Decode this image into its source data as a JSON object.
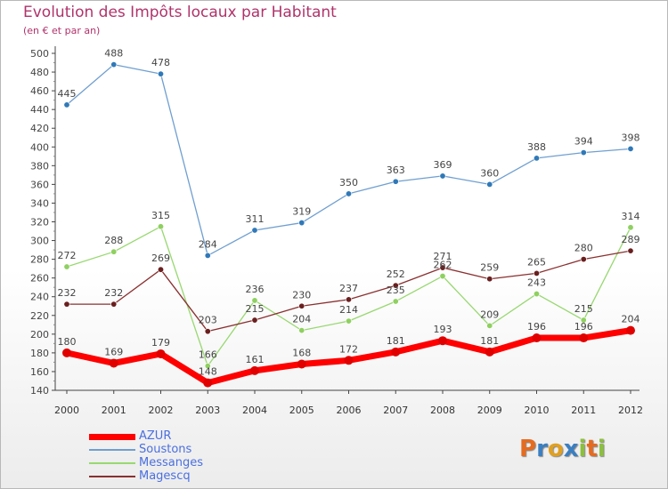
{
  "header": {
    "title": "Evolution des Impôts locaux par Habitant",
    "subtitle": "(en € et par an)"
  },
  "colors": {
    "title": "#b0336b",
    "axis": "#555555",
    "grid": "#e3e3e3"
  },
  "logo": {
    "letters": [
      "P",
      "r",
      "o",
      "x",
      "i",
      "t",
      "i"
    ],
    "colors": [
      "#e66b1f",
      "#3a7fc1",
      "#e0a020",
      "#3a7fc1",
      "#8cbf3f",
      "#e66b1f",
      "#8cbf3f"
    ]
  },
  "chart_data": {
    "type": "line",
    "title": "Evolution des Impôts locaux par Habitant",
    "subtitle": "(en € et par an)",
    "x": [
      "2000",
      "2001",
      "2002",
      "2003",
      "2004",
      "2005",
      "2006",
      "2007",
      "2008",
      "2009",
      "2010",
      "2011",
      "2012"
    ],
    "ylim": [
      140,
      500
    ],
    "yticks": [
      140,
      160,
      180,
      200,
      220,
      240,
      260,
      280,
      300,
      320,
      340,
      360,
      380,
      400,
      420,
      440,
      460,
      480,
      500
    ],
    "grid": false,
    "legend": "bottom-left",
    "series": [
      {
        "name": "Soustons",
        "color": "#6f9fd0",
        "marker": "#2f79b8",
        "values": [
          445,
          488,
          478,
          284,
          311,
          319,
          350,
          363,
          369,
          360,
          388,
          394,
          398
        ],
        "labels": [
          "445",
          "488",
          "478",
          "284",
          "311",
          "319",
          "350",
          "363",
          "369",
          "360",
          "388",
          "394",
          "398"
        ]
      },
      {
        "name": "Messanges",
        "color": "#98d870",
        "marker": "#8fd060",
        "values": [
          272,
          288,
          315,
          166,
          236,
          204,
          214,
          235,
          262,
          209,
          243,
          215,
          314
        ],
        "labels": [
          "272",
          "288",
          "315",
          "166",
          "236",
          "204",
          "214",
          "235",
          "262",
          "209",
          "243",
          "215",
          "314"
        ]
      },
      {
        "name": "Magescq",
        "color": "#8a3030",
        "marker": "#6a1f1f",
        "values": [
          232,
          232,
          269,
          203,
          215,
          230,
          237,
          252,
          271,
          259,
          265,
          280,
          289
        ],
        "labels": [
          "232",
          "232",
          "269",
          "203",
          "215",
          "230",
          "237",
          "252",
          "271",
          "259",
          "265",
          "280",
          "289"
        ]
      },
      {
        "name": "AZUR",
        "color": "#ff0000",
        "marker": "#e00000",
        "values": [
          180,
          169,
          179,
          148,
          161,
          168,
          172,
          181,
          193,
          181,
          196,
          196,
          204
        ],
        "labels": [
          "180",
          "169",
          "179",
          "148",
          "161",
          "168",
          "172",
          "181",
          "193",
          "181",
          "196",
          "196",
          "204"
        ]
      }
    ],
    "legend_order": [
      "AZUR",
      "Soustons",
      "Messanges",
      "Magescq"
    ]
  }
}
